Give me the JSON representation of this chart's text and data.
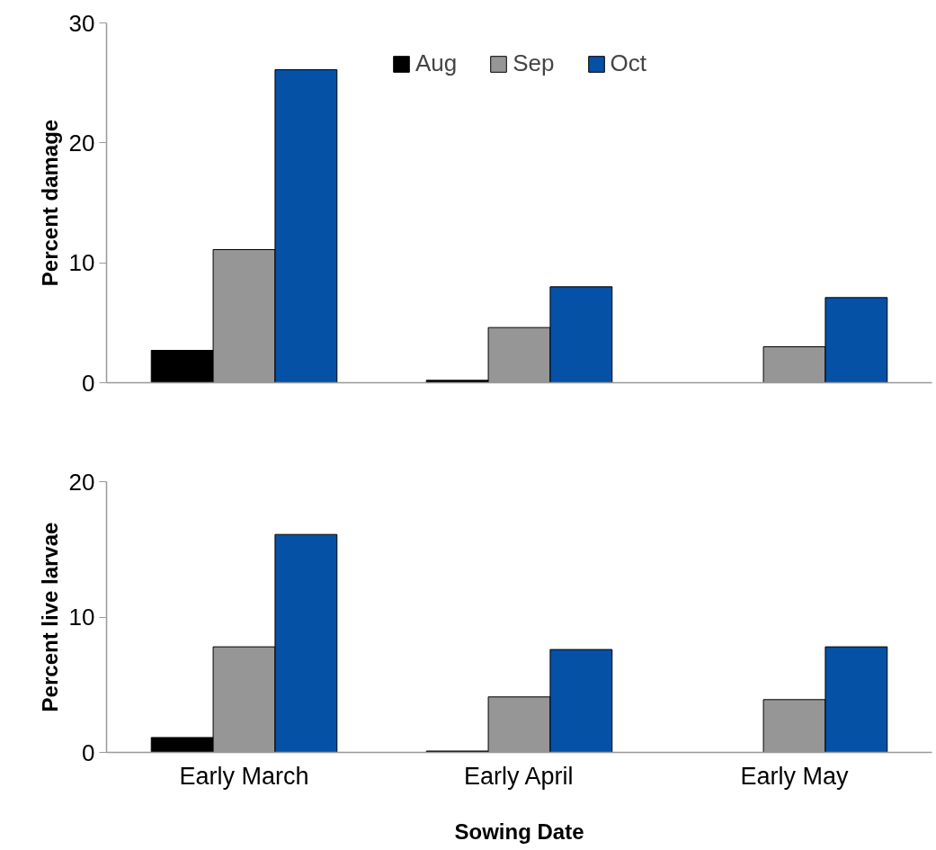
{
  "chart_data": [
    {
      "type": "bar",
      "ylabel": "Percent damage",
      "categories": [
        null,
        null,
        null
      ],
      "ylim": [
        0,
        30
      ],
      "yticks": [
        0,
        10,
        20,
        30
      ],
      "grid": false,
      "legend": "top",
      "tick_labels": "y",
      "series": [
        {
          "name": "Aug",
          "color": "#000000",
          "values": [
            2.7,
            0.2,
            0
          ]
        },
        {
          "name": "Sep",
          "color": "#969696",
          "values": [
            11.1,
            4.6,
            3.0
          ]
        },
        {
          "name": "Oct",
          "color": "#0451a6",
          "values": [
            26.1,
            8.0,
            7.1
          ]
        }
      ]
    },
    {
      "type": "bar",
      "xlabel": "Sowing Date",
      "ylabel": "Percent live larvae",
      "categories": [
        "Early March",
        "Early April",
        "Early May"
      ],
      "ylim": [
        0,
        20
      ],
      "yticks": [
        0,
        10,
        20
      ],
      "grid": false,
      "legend": false,
      "series": [
        {
          "color": "#000000",
          "values": [
            1.1,
            0.1,
            0
          ]
        },
        {
          "color": "#969696",
          "values": [
            7.8,
            4.1,
            3.9
          ]
        },
        {
          "color": "#0451a6",
          "values": [
            16.1,
            7.6,
            7.8
          ]
        }
      ]
    }
  ]
}
